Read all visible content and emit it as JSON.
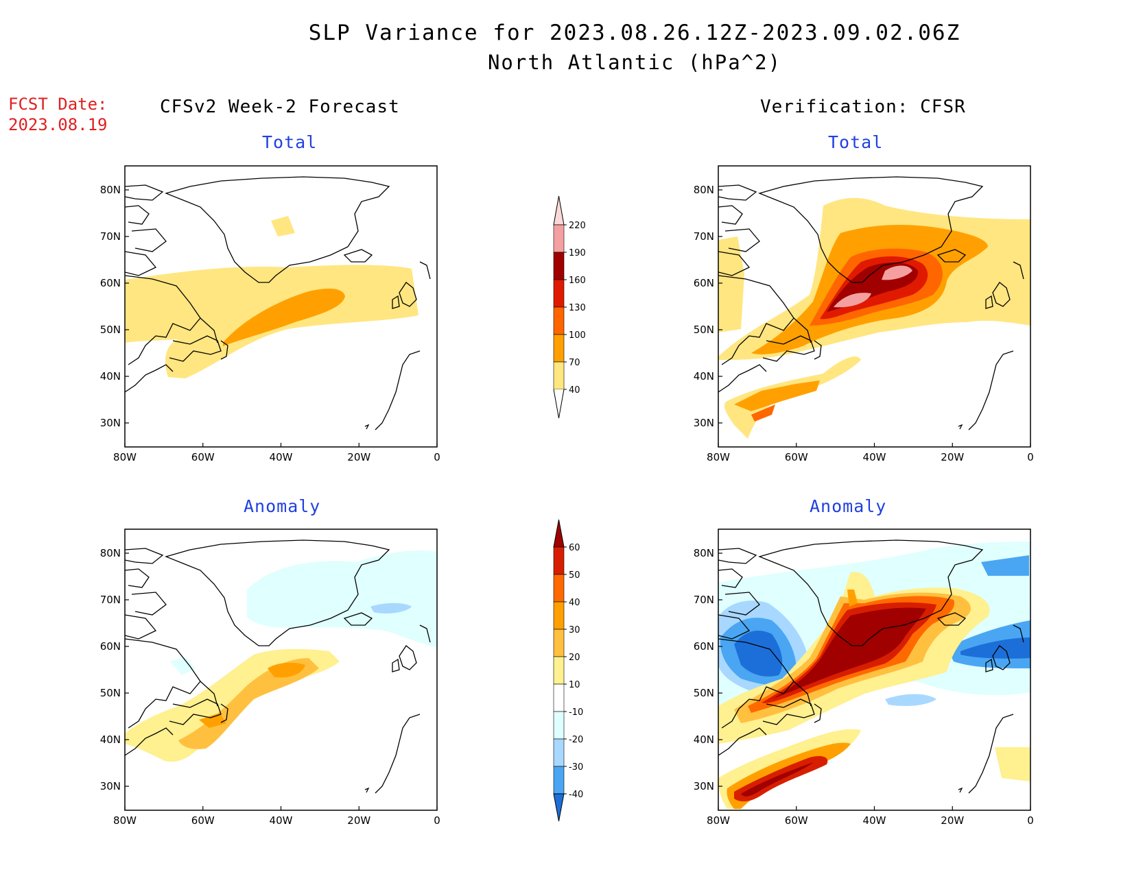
{
  "title": {
    "line1": "SLP Variance for 2023.08.26.12Z-2023.09.02.06Z",
    "line2": "North Atlantic (hPa^2)"
  },
  "fcst_date": {
    "label": "FCST Date:",
    "value": "2023.08.19"
  },
  "columns": {
    "left": "CFSv2 Week-2 Forecast",
    "right": "Verification: CFSR"
  },
  "panels": {
    "total": "Total",
    "anomaly": "Anomaly"
  },
  "axes": {
    "lon_ticks": [
      "80W",
      "60W",
      "40W",
      "20W",
      "0"
    ],
    "lat_ticks": [
      "80N",
      "70N",
      "60N",
      "50N",
      "40N",
      "30N"
    ]
  },
  "colorbar_total": {
    "levels": [
      "220",
      "190",
      "160",
      "130",
      "100",
      "70",
      "40"
    ],
    "colors": [
      "#fcd9d9",
      "#f4a0a0",
      "#a00000",
      "#e01a00",
      "#ff6600",
      "#ffa000",
      "#ffe680"
    ]
  },
  "colorbar_anomaly": {
    "levels": [
      "60",
      "50",
      "40",
      "30",
      "20",
      "10",
      "-10",
      "-20",
      "-30",
      "-40"
    ],
    "colors": [
      "#a00000",
      "#d81e00",
      "#ff6a00",
      "#ffa000",
      "#ffc040",
      "#fff090",
      "#ffffff",
      "#e0ffff",
      "#a8d8ff",
      "#4aa6f2",
      "#1c6fd8"
    ]
  },
  "map_colors": {
    "total": {
      "c40": "#ffe680",
      "c70": "#ffa000",
      "c100": "#ff6600",
      "c130": "#e01a00",
      "c160": "#a00000",
      "c190": "#f4a0a0",
      "c220": "#fcd9d9"
    },
    "anom": {
      "p10": "#fff090",
      "p20": "#ffc040",
      "p30": "#ffa000",
      "p40": "#ff6a00",
      "p50": "#d81e00",
      "p60": "#a00000",
      "n10": "#e0ffff",
      "n20": "#a8d8ff",
      "n30": "#4aa6f2",
      "n40": "#1c6fd8"
    }
  }
}
